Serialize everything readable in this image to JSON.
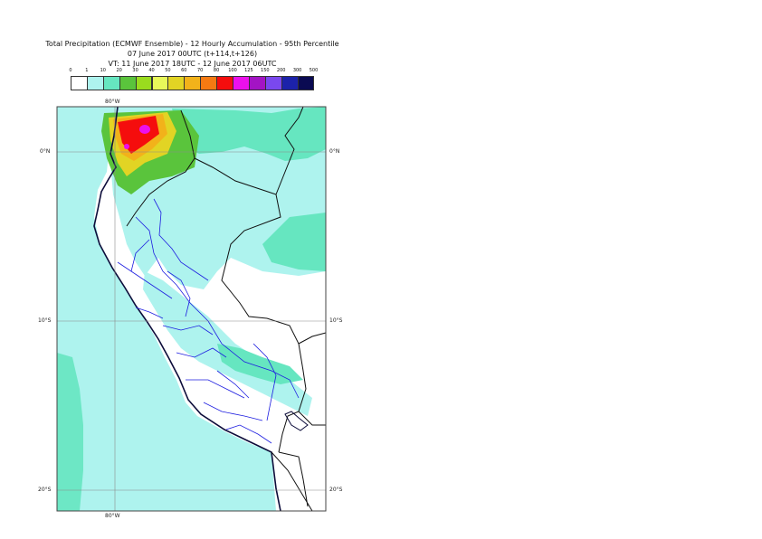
{
  "title": {
    "line1": "Total Precipitation (ECMWF Ensemble) - 12 Hourly Accumulation - 95th Percentile",
    "line2": "07 June 2017 00UTC (t+114,t+126)",
    "line3": "VT: 11 June 2017 18UTC - 12 June 2017 06UTC"
  },
  "colorbar": {
    "ticks": [
      "0",
      "1",
      "10",
      "20",
      "30",
      "40",
      "50",
      "60",
      "70",
      "80",
      "100",
      "125",
      "150",
      "200",
      "300",
      "500"
    ],
    "colors": [
      "#ffffff",
      "#aef3ee",
      "#66e6c0",
      "#5ac43c",
      "#9adc1e",
      "#e8f85a",
      "#e2d424",
      "#f2b21a",
      "#f57a12",
      "#f50d0d",
      "#ec10ec",
      "#a314c4",
      "#7a48ee",
      "#1c22aa",
      "#0a0a52"
    ]
  },
  "map": {
    "lat_labels": [
      "0°N",
      "10°S",
      "20°S"
    ],
    "lon_label": "80°W",
    "colors": {
      "ocean": "#aef3ee",
      "land": "#ffffff",
      "coast": "#0c0c3a",
      "border": "#111111",
      "province": "#1e1ee0",
      "grid": "#888888"
    }
  }
}
